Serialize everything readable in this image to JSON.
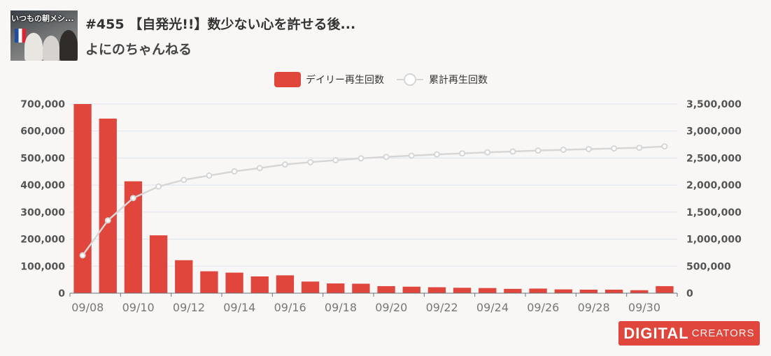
{
  "video": {
    "thumbnail_caption": "いつもの朝メシ...",
    "title": "#455 【自発光!!】数少ない心を許せる後...",
    "channel": "よにのちゃんねる"
  },
  "brand": {
    "name_bold": "DIGITAL",
    "name_light": "CREATORS",
    "color": "#e0463c"
  },
  "chart_data": {
    "type": "bar",
    "legend_placement": "top-center",
    "grid": true,
    "categories": [
      "09/08",
      "09/09",
      "09/10",
      "09/11",
      "09/12",
      "09/13",
      "09/14",
      "09/15",
      "09/16",
      "09/17",
      "09/18",
      "09/19",
      "09/20",
      "09/21",
      "09/22",
      "09/23",
      "09/24",
      "09/25",
      "09/26",
      "09/27",
      "09/28",
      "09/29",
      "09/30",
      "10/01"
    ],
    "x_tick_labels": [
      "09/08",
      "09/10",
      "09/12",
      "09/14",
      "09/16",
      "09/18",
      "09/20",
      "09/22",
      "09/24",
      "09/26",
      "09/28",
      "09/30"
    ],
    "series": [
      {
        "name": "デイリー再生回数",
        "type": "bar",
        "axis": "left",
        "color": "#e0463c",
        "values": [
          700000,
          646000,
          414000,
          214000,
          122000,
          81000,
          76000,
          62000,
          66000,
          43000,
          36000,
          35000,
          26000,
          24000,
          22000,
          20000,
          19000,
          16000,
          17000,
          14000,
          13000,
          13000,
          11000,
          26000
        ]
      },
      {
        "name": "累計再生回数",
        "type": "line",
        "axis": "right",
        "color": "#d6d6d6",
        "values": [
          700000,
          1346000,
          1760000,
          1974000,
          2096000,
          2177000,
          2253000,
          2315000,
          2381000,
          2424000,
          2460000,
          2495000,
          2521000,
          2545000,
          2567000,
          2587000,
          2606000,
          2622000,
          2639000,
          2653000,
          2666000,
          2679000,
          2690000,
          2716000
        ]
      }
    ],
    "y_left": {
      "min": 0,
      "max": 700000,
      "ticks": [
        "0",
        "100,000",
        "200,000",
        "300,000",
        "400,000",
        "500,000",
        "600,000",
        "700,000"
      ]
    },
    "y_right": {
      "min": 0,
      "max": 3500000,
      "ticks": [
        "0",
        "500,000",
        "1,000,000",
        "1,500,000",
        "2,000,000",
        "2,500,000",
        "3,000,000",
        "3,500,000"
      ]
    }
  }
}
